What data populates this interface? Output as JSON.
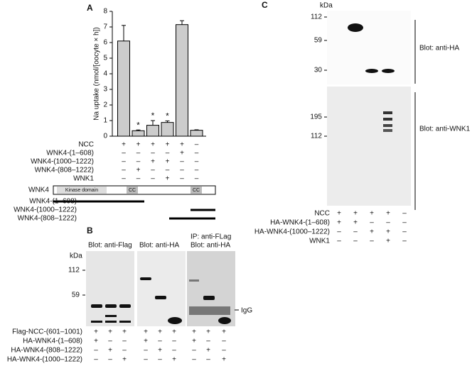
{
  "chart_data": {
    "type": "bar",
    "panel_label": "A",
    "ylabel": "Na uptake (nmol/[oocyte × h])",
    "values": [
      6.1,
      0.35,
      0.7,
      0.88,
      7.15,
      0.38
    ],
    "errors": [
      1.0,
      0.05,
      0.3,
      0.1,
      0.25,
      0.03
    ],
    "significance": [
      null,
      "*",
      "*",
      "*",
      null,
      null
    ],
    "color": "#cccccc",
    "ylim": [
      0,
      8
    ],
    "yticks": [
      0,
      1,
      2,
      3,
      4,
      5,
      6,
      7,
      8
    ],
    "conditions": [
      {
        "label": "NCC",
        "signs": [
          "+",
          "+",
          "+",
          "+",
          "+",
          "–"
        ]
      },
      {
        "label": "WNK4-(1–608)",
        "signs": [
          "–",
          "–",
          "–",
          "–",
          "+",
          "–"
        ]
      },
      {
        "label": "WNK4-(1000–1222)",
        "signs": [
          "–",
          "–",
          "+",
          "+",
          "–",
          "–"
        ]
      },
      {
        "label": "WNK4-(808–1222)",
        "signs": [
          "–",
          "+",
          "–",
          "–",
          "–",
          "–"
        ]
      },
      {
        "label": "WNK1",
        "signs": [
          "–",
          "–",
          "–",
          "+",
          "–",
          "–"
        ]
      }
    ]
  },
  "domain_map": {
    "protein": "WNK4",
    "kinase": "Kinase domain",
    "cc1": "CC",
    "cc2": "CC",
    "constructs": [
      "WNK4-(1–608)",
      "WNK4-(1000–1222)",
      "WNK4-(808–1222)"
    ]
  },
  "panel_b": {
    "label": "B",
    "unit": "kDa",
    "markers": [
      112,
      59
    ],
    "ip": "IP: anti-FLag",
    "blots": [
      "Blot: anti-Flag",
      "Blot: anti-HA",
      "Blot: anti-HA"
    ],
    "igg": "IgG",
    "rows": [
      {
        "label": "Flag-NCC-(601–1001)",
        "signs": [
          "+",
          "+",
          "+",
          "+",
          "+",
          "+",
          "+",
          "+",
          "+"
        ]
      },
      {
        "label": "HA-WNK4-(1–608)",
        "signs": [
          "+",
          "–",
          "–",
          "+",
          "–",
          "–",
          "+",
          "–",
          "–"
        ]
      },
      {
        "label": "HA-WNK4-(808–1222)",
        "signs": [
          "–",
          "+",
          "–",
          "–",
          "+",
          "–",
          "–",
          "+",
          "–"
        ]
      },
      {
        "label": "HA-WNK4-(1000–1222)",
        "signs": [
          "–",
          "–",
          "+",
          "–",
          "–",
          "+",
          "–",
          "–",
          "+"
        ]
      }
    ]
  },
  "panel_c": {
    "label": "C",
    "unit": "kDa",
    "upper_markers": [
      112,
      59,
      30
    ],
    "lower_markers": [
      195,
      112
    ],
    "blots": [
      "Blot: anti-HA",
      "Blot: anti-WNK1"
    ],
    "rows": [
      {
        "label": "NCC",
        "signs": [
          "+",
          "+",
          "+",
          "+",
          "–"
        ]
      },
      {
        "label": "HA-WNK4-(1–608)",
        "signs": [
          "+",
          "+",
          "–",
          "–",
          "–"
        ]
      },
      {
        "label": "HA-WNK4-(1000–1222)",
        "signs": [
          "–",
          "–",
          "+",
          "+",
          "–"
        ]
      },
      {
        "label": "WNK1",
        "signs": [
          "–",
          "–",
          "–",
          "+",
          "–"
        ]
      }
    ]
  }
}
